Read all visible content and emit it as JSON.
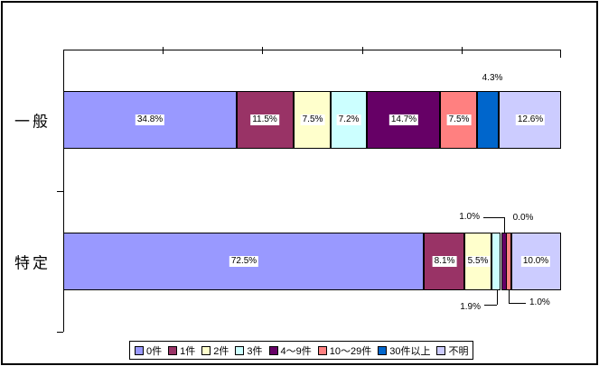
{
  "chart_data": {
    "type": "bar",
    "variant": "horizontal-stacked",
    "title": "",
    "categories": [
      "一般",
      "特定"
    ],
    "series": [
      {
        "name": "0件",
        "color": "#9999FF",
        "values": [
          34.8,
          72.5
        ]
      },
      {
        "name": "1件",
        "color": "#993366",
        "values": [
          11.5,
          8.1
        ]
      },
      {
        "name": "2件",
        "color": "#FFFFCC",
        "values": [
          7.5,
          5.5
        ]
      },
      {
        "name": "3件",
        "color": "#CCFFFF",
        "values": [
          7.2,
          1.9
        ]
      },
      {
        "name": "4〜9件",
        "color": "#660066",
        "values": [
          14.7,
          1.0
        ]
      },
      {
        "name": "10〜29件",
        "color": "#FF8080",
        "values": [
          7.5,
          1.0
        ]
      },
      {
        "name": "30件以上",
        "color": "#0066CC",
        "values": [
          4.3,
          0.0
        ]
      },
      {
        "name": "不明",
        "color": "#CCCCFF",
        "values": [
          12.6,
          10.0
        ]
      }
    ],
    "data_labels": [
      [
        "34.8%",
        "11.5%",
        "7.5%",
        "7.2%",
        "14.7%",
        "7.5%",
        "4.3%",
        "12.6%"
      ],
      [
        "72.5%",
        "8.1%",
        "5.5%",
        "1.9%",
        "1.0%",
        "1.0%",
        "0.0%",
        "10.0%"
      ]
    ],
    "label_positions": [
      [
        "inside",
        "inside",
        "inside",
        "inside",
        "inside",
        "inside",
        "above-center",
        "inside"
      ],
      [
        "inside",
        "inside",
        "inside",
        "below-left",
        "above-left",
        "below-right",
        "above-offset",
        "inside"
      ]
    ],
    "x_axis": {
      "min": 0,
      "max": 100,
      "tick_interval_pct": 20,
      "tick_labels_visible": false,
      "gridlines": false
    },
    "legend": {
      "position": "bottom",
      "entries": [
        "0件",
        "1件",
        "2件",
        "3件",
        "4〜9件",
        "10〜29件",
        "30件以上",
        "不明"
      ]
    },
    "colors": {
      "bar_border": "#000000",
      "label_background": "#FFFFFF",
      "text": "#000000"
    }
  }
}
